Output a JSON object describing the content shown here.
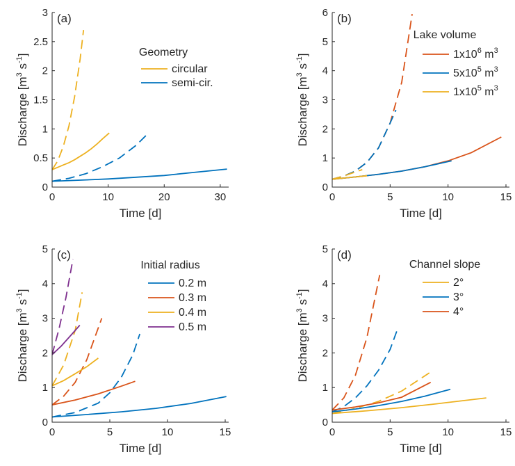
{
  "figure": {
    "background": "#ffffff"
  },
  "colors": {
    "orange": "#EDB120",
    "blue": "#0072BD",
    "red": "#D95319",
    "purple": "#7E2F8E",
    "axis": "#262626"
  },
  "chart_data": [
    {
      "type": "line",
      "panel_label": "(a)",
      "xlabel": "Time [d]",
      "ylabel": "Discharge [m³ s⁻¹]",
      "ylabel_parts": {
        "base": "Discharge [m",
        "exp1": "3",
        "mid": " s",
        "exp2": "-1",
        "end": "]"
      },
      "xlim": [
        0,
        31.5
      ],
      "ylim": [
        0,
        3
      ],
      "xticks": [
        0,
        10,
        20,
        30
      ],
      "yticks": [
        0,
        0.5,
        1,
        1.5,
        2,
        2.5,
        3
      ],
      "legend": {
        "title": "Geometry",
        "placement": "top-right"
      },
      "series": [
        {
          "name": "circular",
          "color": "#EDB120",
          "style": "solid",
          "x": [
            0,
            1,
            2,
            3,
            4,
            5,
            6,
            7,
            8,
            9,
            10.2
          ],
          "y": [
            0.3,
            0.34,
            0.38,
            0.42,
            0.47,
            0.53,
            0.59,
            0.66,
            0.74,
            0.83,
            0.93
          ]
        },
        {
          "name": "",
          "color": "#EDB120",
          "style": "dashed",
          "x": [
            0,
            1,
            2,
            3,
            4,
            5,
            5.6
          ],
          "y": [
            0.3,
            0.45,
            0.7,
            1.05,
            1.55,
            2.2,
            2.7
          ]
        },
        {
          "name": "semi-cir.",
          "color": "#0072BD",
          "style": "solid",
          "x": [
            0,
            5,
            10,
            15,
            20,
            25,
            31.2
          ],
          "y": [
            0.1,
            0.12,
            0.14,
            0.17,
            0.2,
            0.25,
            0.31
          ]
        },
        {
          "name": "",
          "color": "#0072BD",
          "style": "dashed",
          "x": [
            0,
            3,
            6,
            9,
            12,
            15,
            17.2
          ],
          "y": [
            0.1,
            0.15,
            0.23,
            0.35,
            0.5,
            0.72,
            0.93
          ]
        }
      ]
    },
    {
      "type": "line",
      "panel_label": "(b)",
      "xlabel": "Time [d]",
      "ylabel": "Discharge [m³ s⁻¹]",
      "ylabel_parts": {
        "base": "Discharge [m",
        "exp1": "3",
        "mid": " s",
        "exp2": "-1",
        "end": "]"
      },
      "xlim": [
        0,
        15.3
      ],
      "ylim": [
        0,
        6
      ],
      "xticks": [
        0,
        5,
        10,
        15
      ],
      "yticks": [
        0,
        1,
        2,
        3,
        4,
        5,
        6
      ],
      "legend": {
        "title": "Lake volume",
        "placement": "top-right"
      },
      "legend_entries": [
        {
          "coef": "1x10",
          "exp": "6",
          "unit": " m",
          "unit_exp": "3",
          "color": "#D95319"
        },
        {
          "coef": "5x10",
          "exp": "5",
          "unit": " m",
          "unit_exp": "3",
          "color": "#0072BD"
        },
        {
          "coef": "1x10",
          "exp": "5",
          "unit": " m",
          "unit_exp": "3",
          "color": "#EDB120"
        }
      ],
      "series": [
        {
          "name": "1x10⁶ m³",
          "color": "#D95319",
          "style": "solid",
          "x": [
            0,
            2,
            4,
            6,
            8,
            10,
            12,
            14.6
          ],
          "y": [
            0.27,
            0.35,
            0.44,
            0.55,
            0.7,
            0.9,
            1.18,
            1.72
          ]
        },
        {
          "name": "",
          "color": "#D95319",
          "style": "dashed",
          "x": [
            0,
            1,
            2,
            3,
            4,
            5,
            6,
            6.9
          ],
          "y": [
            0.27,
            0.38,
            0.55,
            0.85,
            1.35,
            2.2,
            3.6,
            5.95
          ]
        },
        {
          "name": "5x10⁵ m³",
          "color": "#0072BD",
          "style": "solid",
          "x": [
            0,
            2,
            4,
            6,
            8,
            10.3
          ],
          "y": [
            0.27,
            0.35,
            0.44,
            0.55,
            0.7,
            0.9
          ]
        },
        {
          "name": "",
          "color": "#0072BD",
          "style": "dashed",
          "x": [
            0,
            1,
            2,
            3,
            4,
            5,
            5.5
          ],
          "y": [
            0.27,
            0.38,
            0.55,
            0.85,
            1.35,
            2.2,
            2.65
          ]
        },
        {
          "name": "1x10⁵ m³",
          "color": "#EDB120",
          "style": "solid",
          "x": [
            0,
            1,
            2,
            3
          ],
          "y": [
            0.27,
            0.31,
            0.35,
            0.39
          ]
        },
        {
          "name": "",
          "color": "#EDB120",
          "style": "dashed",
          "x": [
            0,
            1,
            2,
            2.6
          ],
          "y": [
            0.27,
            0.38,
            0.52,
            0.6
          ]
        }
      ]
    },
    {
      "type": "line",
      "panel_label": "(c)",
      "xlabel": "Time [d]",
      "ylabel": "Discharge [m³ s⁻¹]",
      "ylabel_parts": {
        "base": "Discharge [m",
        "exp1": "3",
        "mid": " s",
        "exp2": "-1",
        "end": "]"
      },
      "xlim": [
        0,
        15.3
      ],
      "ylim": [
        0,
        5
      ],
      "xticks": [
        0,
        5,
        10,
        15
      ],
      "yticks": [
        0,
        1,
        2,
        3,
        4,
        5
      ],
      "legend": {
        "title": "Initial radius",
        "placement": "top-right"
      },
      "series": [
        {
          "name": "0.2 m",
          "color": "#0072BD",
          "style": "solid",
          "x": [
            0,
            3,
            6,
            9,
            12,
            15.1
          ],
          "y": [
            0.15,
            0.22,
            0.3,
            0.4,
            0.54,
            0.74
          ]
        },
        {
          "name": "",
          "color": "#0072BD",
          "style": "dashed",
          "x": [
            0,
            2,
            4,
            5,
            6,
            7,
            7.6
          ],
          "y": [
            0.15,
            0.28,
            0.55,
            0.85,
            1.3,
            1.95,
            2.55
          ]
        },
        {
          "name": "0.3 m",
          "color": "#D95319",
          "style": "solid",
          "x": [
            0,
            2,
            4,
            6,
            7.2
          ],
          "y": [
            0.5,
            0.64,
            0.82,
            1.04,
            1.18
          ]
        },
        {
          "name": "",
          "color": "#D95319",
          "style": "dashed",
          "x": [
            0,
            1,
            2,
            3,
            4.3
          ],
          "y": [
            0.5,
            0.75,
            1.15,
            1.8,
            3.0
          ]
        },
        {
          "name": "0.4 m",
          "color": "#EDB120",
          "style": "solid",
          "x": [
            0,
            1,
            2,
            3,
            4
          ],
          "y": [
            1.05,
            1.2,
            1.4,
            1.6,
            1.85
          ]
        },
        {
          "name": "",
          "color": "#EDB120",
          "style": "dashed",
          "x": [
            0,
            1,
            2,
            2.6
          ],
          "y": [
            1.05,
            1.65,
            2.65,
            3.75
          ]
        },
        {
          "name": "0.5 m",
          "color": "#7E2F8E",
          "style": "solid",
          "x": [
            0,
            0.8,
            1.6,
            2.4
          ],
          "y": [
            1.95,
            2.2,
            2.5,
            2.8
          ]
        },
        {
          "name": "",
          "color": "#7E2F8E",
          "style": "dashed",
          "x": [
            0,
            0.6,
            1.2,
            1.8
          ],
          "y": [
            1.95,
            2.7,
            3.6,
            4.7
          ]
        }
      ]
    },
    {
      "type": "line",
      "panel_label": "(d)",
      "xlabel": "Time [d]",
      "ylabel": "Discharge [m³ s⁻¹]",
      "ylabel_parts": {
        "base": "Discharge [m",
        "exp1": "3",
        "mid": " s",
        "exp2": "-1",
        "end": "]"
      },
      "xlim": [
        0,
        15.3
      ],
      "ylim": [
        0,
        5
      ],
      "xticks": [
        0,
        5,
        10,
        15
      ],
      "yticks": [
        0,
        1,
        2,
        3,
        4,
        5
      ],
      "legend": {
        "title": "Channel slope",
        "placement": "top-right"
      },
      "series": [
        {
          "name": "2°",
          "color": "#EDB120",
          "style": "solid",
          "x": [
            0,
            3,
            6,
            9,
            13.3
          ],
          "y": [
            0.25,
            0.33,
            0.42,
            0.53,
            0.7
          ]
        },
        {
          "name": "",
          "color": "#EDB120",
          "style": "dashed",
          "x": [
            0,
            2,
            4,
            6,
            8.5
          ],
          "y": [
            0.25,
            0.4,
            0.6,
            0.9,
            1.45
          ]
        },
        {
          "name": "3°",
          "color": "#0072BD",
          "style": "solid",
          "x": [
            0,
            2,
            4,
            6,
            8,
            10.2
          ],
          "y": [
            0.3,
            0.38,
            0.48,
            0.6,
            0.75,
            0.95
          ]
        },
        {
          "name": "",
          "color": "#0072BD",
          "style": "dashed",
          "x": [
            0,
            1,
            2,
            3,
            4,
            5,
            5.6
          ],
          "y": [
            0.3,
            0.45,
            0.7,
            1.05,
            1.5,
            2.1,
            2.65
          ]
        },
        {
          "name": "4°",
          "color": "#D95319",
          "style": "solid",
          "x": [
            0,
            2,
            4,
            6,
            8.5
          ],
          "y": [
            0.35,
            0.44,
            0.56,
            0.72,
            1.15
          ]
        },
        {
          "name": "",
          "color": "#D95319",
          "style": "dashed",
          "x": [
            0,
            1,
            2,
            3,
            4.1
          ],
          "y": [
            0.35,
            0.7,
            1.35,
            2.45,
            4.25
          ]
        }
      ]
    }
  ]
}
